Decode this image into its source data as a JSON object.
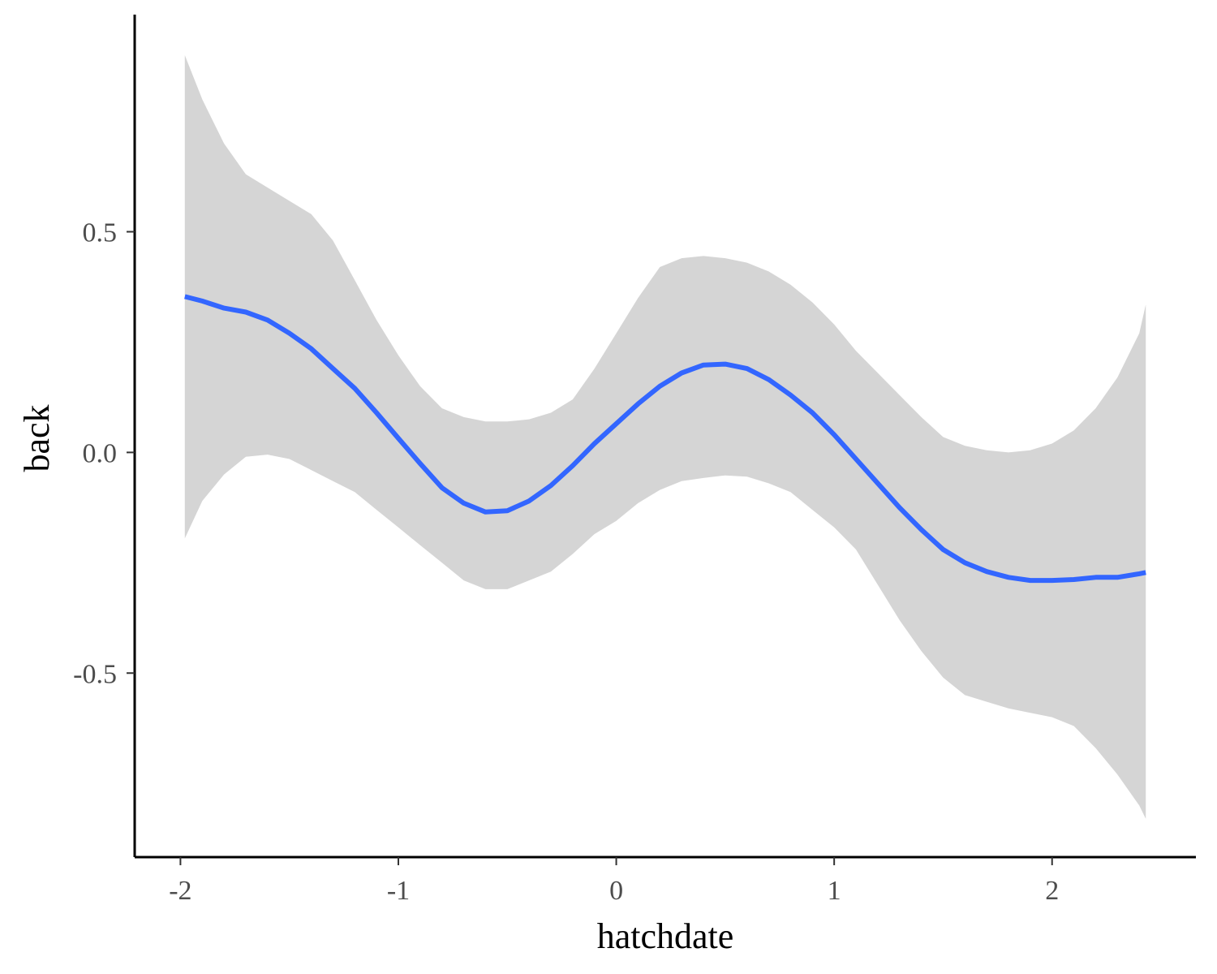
{
  "chart_data": {
    "type": "line",
    "title": "",
    "xlabel": "hatchdate",
    "ylabel": "back",
    "xlim": [
      -2.21,
      2.66
    ],
    "ylim": [
      -0.917,
      0.992
    ],
    "xticks": [
      -2,
      -1,
      0,
      1,
      2
    ],
    "xtick_labels": [
      "-2",
      "-1",
      "0",
      "1",
      "2"
    ],
    "yticks": [
      -0.5,
      0.0,
      0.5
    ],
    "ytick_labels": [
      "-0.5",
      "0.0",
      "0.5"
    ],
    "grid": false,
    "legend": "none",
    "series": [
      {
        "x": [
          -1.98,
          -1.9,
          -1.8,
          -1.7,
          -1.6,
          -1.5,
          -1.4,
          -1.3,
          -1.2,
          -1.1,
          -1.0,
          -0.9,
          -0.8,
          -0.7,
          -0.6,
          -0.5,
          -0.4,
          -0.3,
          -0.2,
          -0.1,
          0.0,
          0.1,
          0.2,
          0.3,
          0.4,
          0.5,
          0.6,
          0.7,
          0.8,
          0.9,
          1.0,
          1.1,
          1.2,
          1.3,
          1.4,
          1.5,
          1.6,
          1.7,
          1.8,
          1.9,
          2.0,
          2.1,
          2.2,
          2.3,
          2.4,
          2.43
        ],
        "y": [
          0.353,
          0.343,
          0.327,
          0.318,
          0.3,
          0.27,
          0.235,
          0.19,
          0.145,
          0.09,
          0.032,
          -0.025,
          -0.08,
          -0.115,
          -0.135,
          -0.132,
          -0.11,
          -0.075,
          -0.03,
          0.02,
          0.065,
          0.11,
          0.15,
          0.18,
          0.198,
          0.2,
          0.19,
          0.165,
          0.13,
          0.09,
          0.04,
          -0.015,
          -0.07,
          -0.125,
          -0.175,
          -0.22,
          -0.25,
          -0.27,
          -0.283,
          -0.29,
          -0.29,
          -0.288,
          -0.283,
          -0.283,
          -0.275,
          -0.272
        ],
        "lower": [
          -0.195,
          -0.11,
          -0.05,
          -0.01,
          -0.005,
          -0.015,
          -0.04,
          -0.065,
          -0.09,
          -0.13,
          -0.17,
          -0.21,
          -0.25,
          -0.29,
          -0.31,
          -0.31,
          -0.29,
          -0.27,
          -0.23,
          -0.185,
          -0.155,
          -0.115,
          -0.085,
          -0.065,
          -0.058,
          -0.052,
          -0.055,
          -0.07,
          -0.09,
          -0.13,
          -0.17,
          -0.22,
          -0.3,
          -0.38,
          -0.45,
          -0.51,
          -0.55,
          -0.565,
          -0.58,
          -0.59,
          -0.6,
          -0.62,
          -0.67,
          -0.73,
          -0.8,
          -0.83
        ],
        "upper": [
          0.9,
          0.8,
          0.7,
          0.63,
          0.6,
          0.57,
          0.54,
          0.48,
          0.39,
          0.3,
          0.22,
          0.15,
          0.1,
          0.08,
          0.07,
          0.07,
          0.075,
          0.09,
          0.12,
          0.19,
          0.27,
          0.35,
          0.42,
          0.44,
          0.445,
          0.44,
          0.43,
          0.41,
          0.38,
          0.34,
          0.29,
          0.23,
          0.18,
          0.13,
          0.08,
          0.035,
          0.015,
          0.005,
          0.0,
          0.005,
          0.02,
          0.05,
          0.1,
          0.17,
          0.27,
          0.335
        ]
      }
    ],
    "colors": {
      "line": "#3366FF",
      "ribbon": "#D5D5D5",
      "axis": "#000000",
      "tick_label": "#4D4D4D"
    }
  }
}
